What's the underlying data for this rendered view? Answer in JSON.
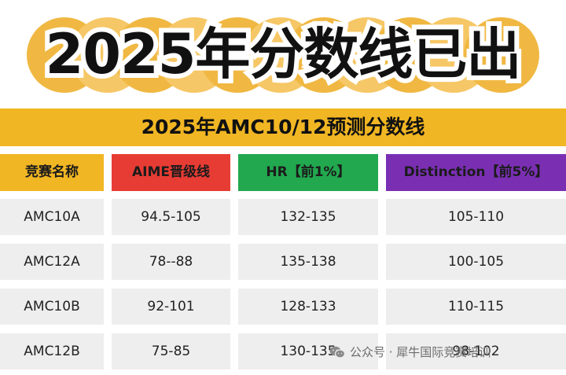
{
  "title": "2025年分数线已出",
  "subtitle": "2025年AMC10/12预测分数线",
  "colors": {
    "banner_blobs": [
      "#f0b842",
      "#f6c766"
    ],
    "subtitle_bar": "#f1b623",
    "header_competition": "#f1b623",
    "header_aime": "#e73c34",
    "header_hr": "#22a84f",
    "header_distinction": "#7a2fb3",
    "cell_background": "#eeeeee"
  },
  "table": {
    "headers": [
      "竞赛名称",
      "AIME晋级线",
      "HR【前1%】",
      "Distinction【前5%】"
    ],
    "rows": [
      [
        "AMC10A",
        "94.5-105",
        "132-135",
        "105-110"
      ],
      [
        "AMC12A",
        "78--88",
        "135-138",
        "100-105"
      ],
      [
        "AMC10B",
        "92-101",
        "128-133",
        "110-115"
      ],
      [
        "AMC12B",
        "75-85",
        "130-135",
        "98-102"
      ]
    ]
  },
  "watermark": {
    "icon": "wechat-icon",
    "text": "公众号 · 犀牛国际竞赛培训"
  }
}
